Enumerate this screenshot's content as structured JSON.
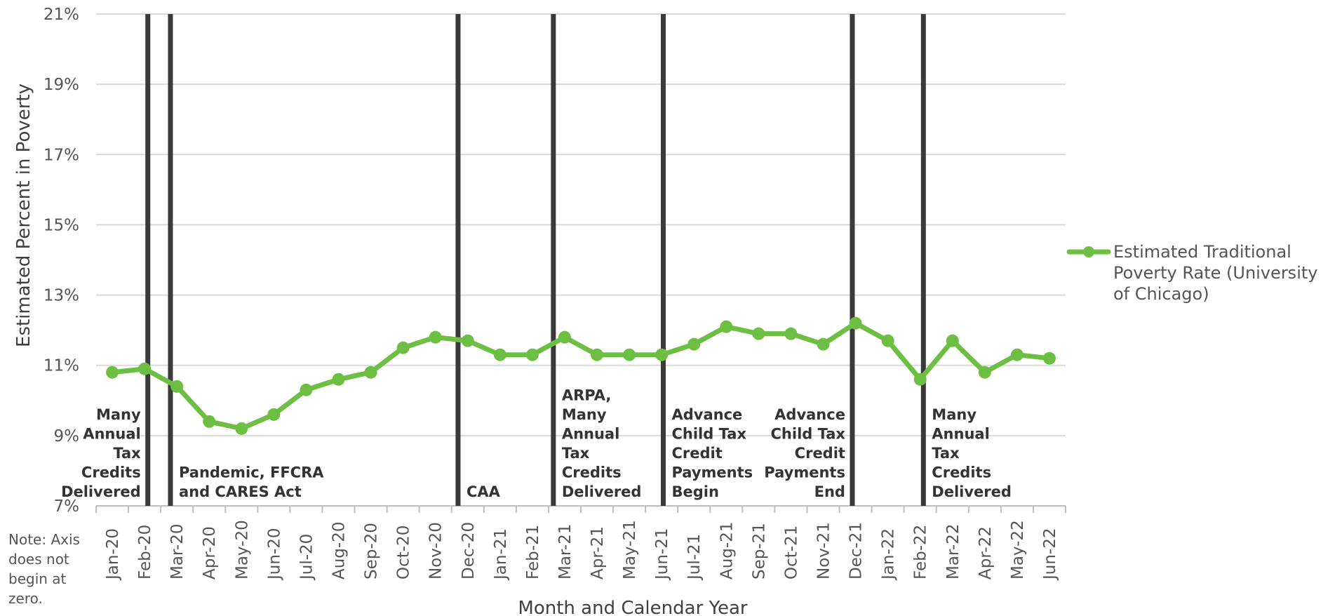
{
  "chart_data": {
    "type": "line",
    "categories": [
      "Jan-20",
      "Feb-20",
      "Mar-20",
      "Apr-20",
      "May-20",
      "Jun-20",
      "Jul-20",
      "Aug-20",
      "Sep-20",
      "Oct-20",
      "Nov-20",
      "Dec-20",
      "Jan-21",
      "Feb-21",
      "Mar-21",
      "Apr-21",
      "May-21",
      "Jun-21",
      "Jul-21",
      "Aug-21",
      "Sep-21",
      "Oct-21",
      "Nov-21",
      "Dec-21",
      "Jan-22",
      "Feb-22",
      "Mar-22",
      "Apr-22",
      "May-22",
      "Jun-22"
    ],
    "series": [
      {
        "name": "Estimated Traditional Poverty Rate (University of Chicago)",
        "color": "#6dbf44",
        "values": [
          10.8,
          10.9,
          10.4,
          9.4,
          9.2,
          9.6,
          10.3,
          10.6,
          10.8,
          11.5,
          11.8,
          11.7,
          11.3,
          11.3,
          11.8,
          11.3,
          11.3,
          11.3,
          11.6,
          12.1,
          11.9,
          11.9,
          11.6,
          12.2,
          11.7,
          10.6,
          11.7,
          10.8,
          11.3,
          11.2
        ]
      }
    ],
    "legend_lines": [
      "Estimated Traditional",
      "Poverty Rate (University",
      "of Chicago)"
    ],
    "xlabel": "Month and Calendar Year",
    "ylabel": "Estimated Percent in Poverty",
    "ylim": [
      7,
      21
    ],
    "yticks": [
      7,
      9,
      11,
      13,
      15,
      17,
      19,
      21
    ],
    "ytick_labels": [
      "7%",
      "9%",
      "11%",
      "13%",
      "15%",
      "17%",
      "19%",
      "21%"
    ],
    "grid": true,
    "legend_position": "right",
    "event_line_color": "#3a3a3a",
    "events": [
      {
        "x": 1.6,
        "lines": [
          "Many",
          "Annual",
          "Tax",
          "Credits",
          "Delivered"
        ],
        "side": "left"
      },
      {
        "x": 2.3,
        "lines": [
          "Pandemic, FFCRA",
          "and CARES Act"
        ],
        "side": "right"
      },
      {
        "x": 11.2,
        "lines": [
          "CAA"
        ],
        "side": "right"
      },
      {
        "x": 14.15,
        "lines": [
          "ARPA,",
          "Many",
          "Annual",
          "Tax",
          "Credits",
          "Delivered"
        ],
        "side": "right"
      },
      {
        "x": 17.55,
        "lines": [
          "Advance",
          "Child Tax",
          "Credit",
          "Payments",
          "Begin"
        ],
        "side": "right"
      },
      {
        "x": 23.4,
        "lines": [
          "Advance",
          "Child Tax",
          "Credit",
          "Payments",
          "End"
        ],
        "side": "left"
      },
      {
        "x": 25.6,
        "lines": [
          "Many",
          "Annual",
          "Tax",
          "Credits",
          "Delivered"
        ],
        "side": "right"
      }
    ],
    "note_lines": [
      "Note: Axis",
      "does not",
      "begin at",
      "zero."
    ]
  }
}
